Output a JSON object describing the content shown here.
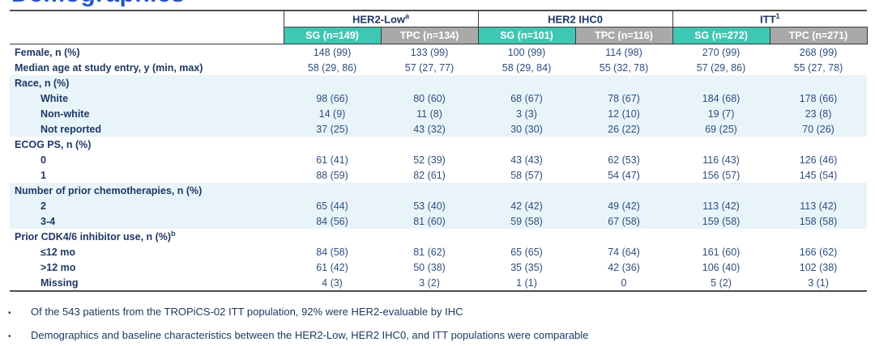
{
  "page": {
    "title": "Demographics",
    "title_color": "#2457C5"
  },
  "table": {
    "colors": {
      "sg_header": "#3EC7B3",
      "tpc_header": "#A9A9A9",
      "band_blue": "#E8F4F9",
      "text_navy": "#1F3864"
    },
    "groups": [
      {
        "label": "HER2-Low",
        "sup": "a"
      },
      {
        "label": "HER2 IHC0",
        "sup": ""
      },
      {
        "label": "ITT",
        "sup": "1"
      }
    ],
    "columns": [
      {
        "label": "SG (n=149)",
        "type": "sg"
      },
      {
        "label": "TPC (n=134)",
        "type": "tpc"
      },
      {
        "label": "SG (n=101)",
        "type": "sg"
      },
      {
        "label": "TPC (n=116)",
        "type": "tpc"
      },
      {
        "label": "SG (n=272)",
        "type": "sg"
      },
      {
        "label": "TPC (n=271)",
        "type": "tpc"
      }
    ],
    "rows": [
      {
        "label": "Female, n (%)",
        "sup": "",
        "indent": false,
        "band": "white",
        "values": [
          "148 (99)",
          "133 (99)",
          "100 (99)",
          "114 (98)",
          "270 (99)",
          "268 (99)"
        ]
      },
      {
        "label": "Median age at study entry, y (min, max)",
        "sup": "",
        "indent": false,
        "band": "white",
        "values": [
          "58 (29, 86)",
          "57 (27, 77)",
          "58 (29, 84)",
          "55 (32, 78)",
          "57 (29, 86)",
          "55 (27, 78)"
        ]
      },
      {
        "label": "Race, n (%)",
        "sup": "",
        "indent": false,
        "band": "blue",
        "values": [
          "",
          "",
          "",
          "",
          "",
          ""
        ]
      },
      {
        "label": "White",
        "sup": "",
        "indent": true,
        "band": "blue",
        "values": [
          "98 (66)",
          "80 (60)",
          "68 (67)",
          "78 (67)",
          "184 (68)",
          "178 (66)"
        ]
      },
      {
        "label": "Non-white",
        "sup": "",
        "indent": true,
        "band": "blue",
        "values": [
          "14 (9)",
          "11 (8)",
          "3 (3)",
          "12 (10)",
          "19 (7)",
          "23 (8)"
        ]
      },
      {
        "label": "Not reported",
        "sup": "",
        "indent": true,
        "band": "blue",
        "values": [
          "37 (25)",
          "43 (32)",
          "30 (30)",
          "26 (22)",
          "69 (25)",
          "70 (26)"
        ]
      },
      {
        "label": "ECOG PS, n (%)",
        "sup": "",
        "indent": false,
        "band": "white",
        "values": [
          "",
          "",
          "",
          "",
          "",
          ""
        ]
      },
      {
        "label": "0",
        "sup": "",
        "indent": true,
        "band": "white",
        "values": [
          "61 (41)",
          "52 (39)",
          "43 (43)",
          "62 (53)",
          "116 (43)",
          "126 (46)"
        ]
      },
      {
        "label": "1",
        "sup": "",
        "indent": true,
        "band": "white",
        "values": [
          "88 (59)",
          "82 (61)",
          "58 (57)",
          "54 (47)",
          "156 (57)",
          "145 (54)"
        ]
      },
      {
        "label": "Number of prior chemotherapies, n (%)",
        "sup": "",
        "indent": false,
        "band": "blue",
        "values": [
          "",
          "",
          "",
          "",
          "",
          ""
        ]
      },
      {
        "label": "2",
        "sup": "",
        "indent": true,
        "band": "blue",
        "values": [
          "65 (44)",
          "53 (40)",
          "42 (42)",
          "49 (42)",
          "113 (42)",
          "113 (42)"
        ]
      },
      {
        "label": "3-4",
        "sup": "",
        "indent": true,
        "band": "blue",
        "values": [
          "84 (56)",
          "81 (60)",
          "59 (58)",
          "67 (58)",
          "159 (58)",
          "158 (58)"
        ]
      },
      {
        "label": "Prior CDK4/6 inhibitor use, n (%)",
        "sup": "b",
        "indent": false,
        "band": "white",
        "values": [
          "",
          "",
          "",
          "",
          "",
          ""
        ]
      },
      {
        "label": "≤12 mo",
        "sup": "",
        "indent": true,
        "band": "white",
        "values": [
          "84 (58)",
          "81 (62)",
          "65 (65)",
          "74 (64)",
          "161 (60)",
          "166 (62)"
        ]
      },
      {
        "label": ">12 mo",
        "sup": "",
        "indent": true,
        "band": "white",
        "values": [
          "61 (42)",
          "50 (38)",
          "35 (35)",
          "42 (36)",
          "106 (40)",
          "102 (38)"
        ]
      },
      {
        "label": "Missing",
        "sup": "",
        "indent": true,
        "band": "white",
        "values": [
          "4 (3)",
          "3 (2)",
          "1 (1)",
          "0",
          "5 (2)",
          "3 (1)"
        ]
      }
    ]
  },
  "bullets": [
    {
      "marker": "•",
      "text": "Of the 543 patients from the TROPiCS-02 ITT population, 92% were HER2-evaluable by IHC"
    },
    {
      "marker": "•",
      "text": "Demographics and baseline characteristics between the HER2-Low, HER2 IHC0, and ITT populations were comparable"
    }
  ]
}
